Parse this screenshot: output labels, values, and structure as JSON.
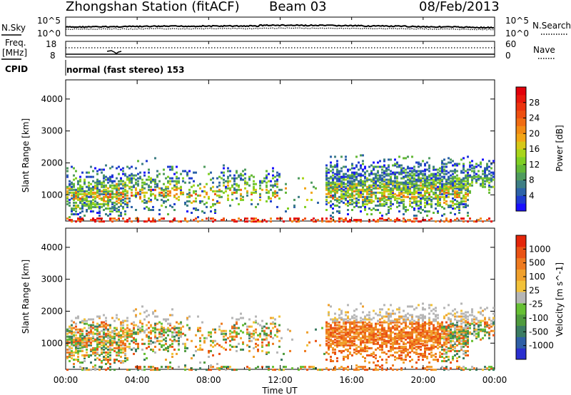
{
  "header": {
    "station": "Zhongshan Station (fitACF)",
    "beam": "Beam 03",
    "date": "08/Feb/2013"
  },
  "params": {
    "nsky_label": "N.Sky",
    "nsearch_label": "N.Search",
    "nsky_ticks": [
      "10^5",
      "10^0"
    ],
    "nsearch_ticks": [
      "10^5",
      "10^0"
    ],
    "freq_label_1": "Freq.",
    "freq_label_2": "[MHz]",
    "freq_ticks": [
      "18",
      "8"
    ],
    "nave_label": "Nave",
    "nave_ticks": [
      "60",
      "0"
    ],
    "cpid_label": "CPID",
    "cpid_text": "normal (fast stereo) 153"
  },
  "chart_data": [
    {
      "type": "heatmap",
      "title": "Power [dB]",
      "ylabel": "Slant Range [km]",
      "xlabel": "Time UT",
      "x_ticks": [
        "00:00",
        "04:00",
        "08:00",
        "12:00",
        "16:00",
        "20:00",
        "00:00"
      ],
      "y_ticks": [
        1000,
        2000,
        3000,
        4000
      ],
      "ylim": [
        180,
        4600
      ],
      "xlim_hours": [
        0,
        24
      ],
      "colorbar": {
        "label": "Power [dB]",
        "ticks": [
          4,
          8,
          12,
          16,
          20,
          24,
          28
        ],
        "range": [
          0,
          32
        ],
        "colors": [
          "#1a10ff",
          "#1f3dcf",
          "#2d63a8",
          "#3e7e84",
          "#4f9b5e",
          "#63b837",
          "#7fcf23",
          "#a8d51a",
          "#d6c818",
          "#f2a616",
          "#f28b14",
          "#f06c12",
          "#ee4f10",
          "#ec330e",
          "#e8180c",
          "#e2000a"
        ]
      }
    },
    {
      "type": "heatmap",
      "title": "Velocity [m s^-1]",
      "ylabel": "Slant Range [km]",
      "xlabel": "Time UT",
      "x_ticks": [
        "00:00",
        "04:00",
        "08:00",
        "12:00",
        "16:00",
        "20:00",
        "00:00"
      ],
      "y_ticks": [
        1000,
        2000,
        3000,
        4000
      ],
      "ylim": [
        180,
        4600
      ],
      "xlim_hours": [
        0,
        24
      ],
      "colorbar": {
        "label": "Velocity [m s^-1]",
        "ticks": [
          "1000",
          "500",
          "100",
          "25",
          "-25",
          "-100",
          "-500",
          "-1000"
        ],
        "colors": [
          "#2a2fcf",
          "#2f5fa6",
          "#3b7c63",
          "#4f9b3e",
          "#66c033",
          "#b6b6b6",
          "#f2c23a",
          "#f0a02c",
          "#ee7a1f",
          "#ea5214",
          "#e4260a"
        ]
      }
    }
  ]
}
